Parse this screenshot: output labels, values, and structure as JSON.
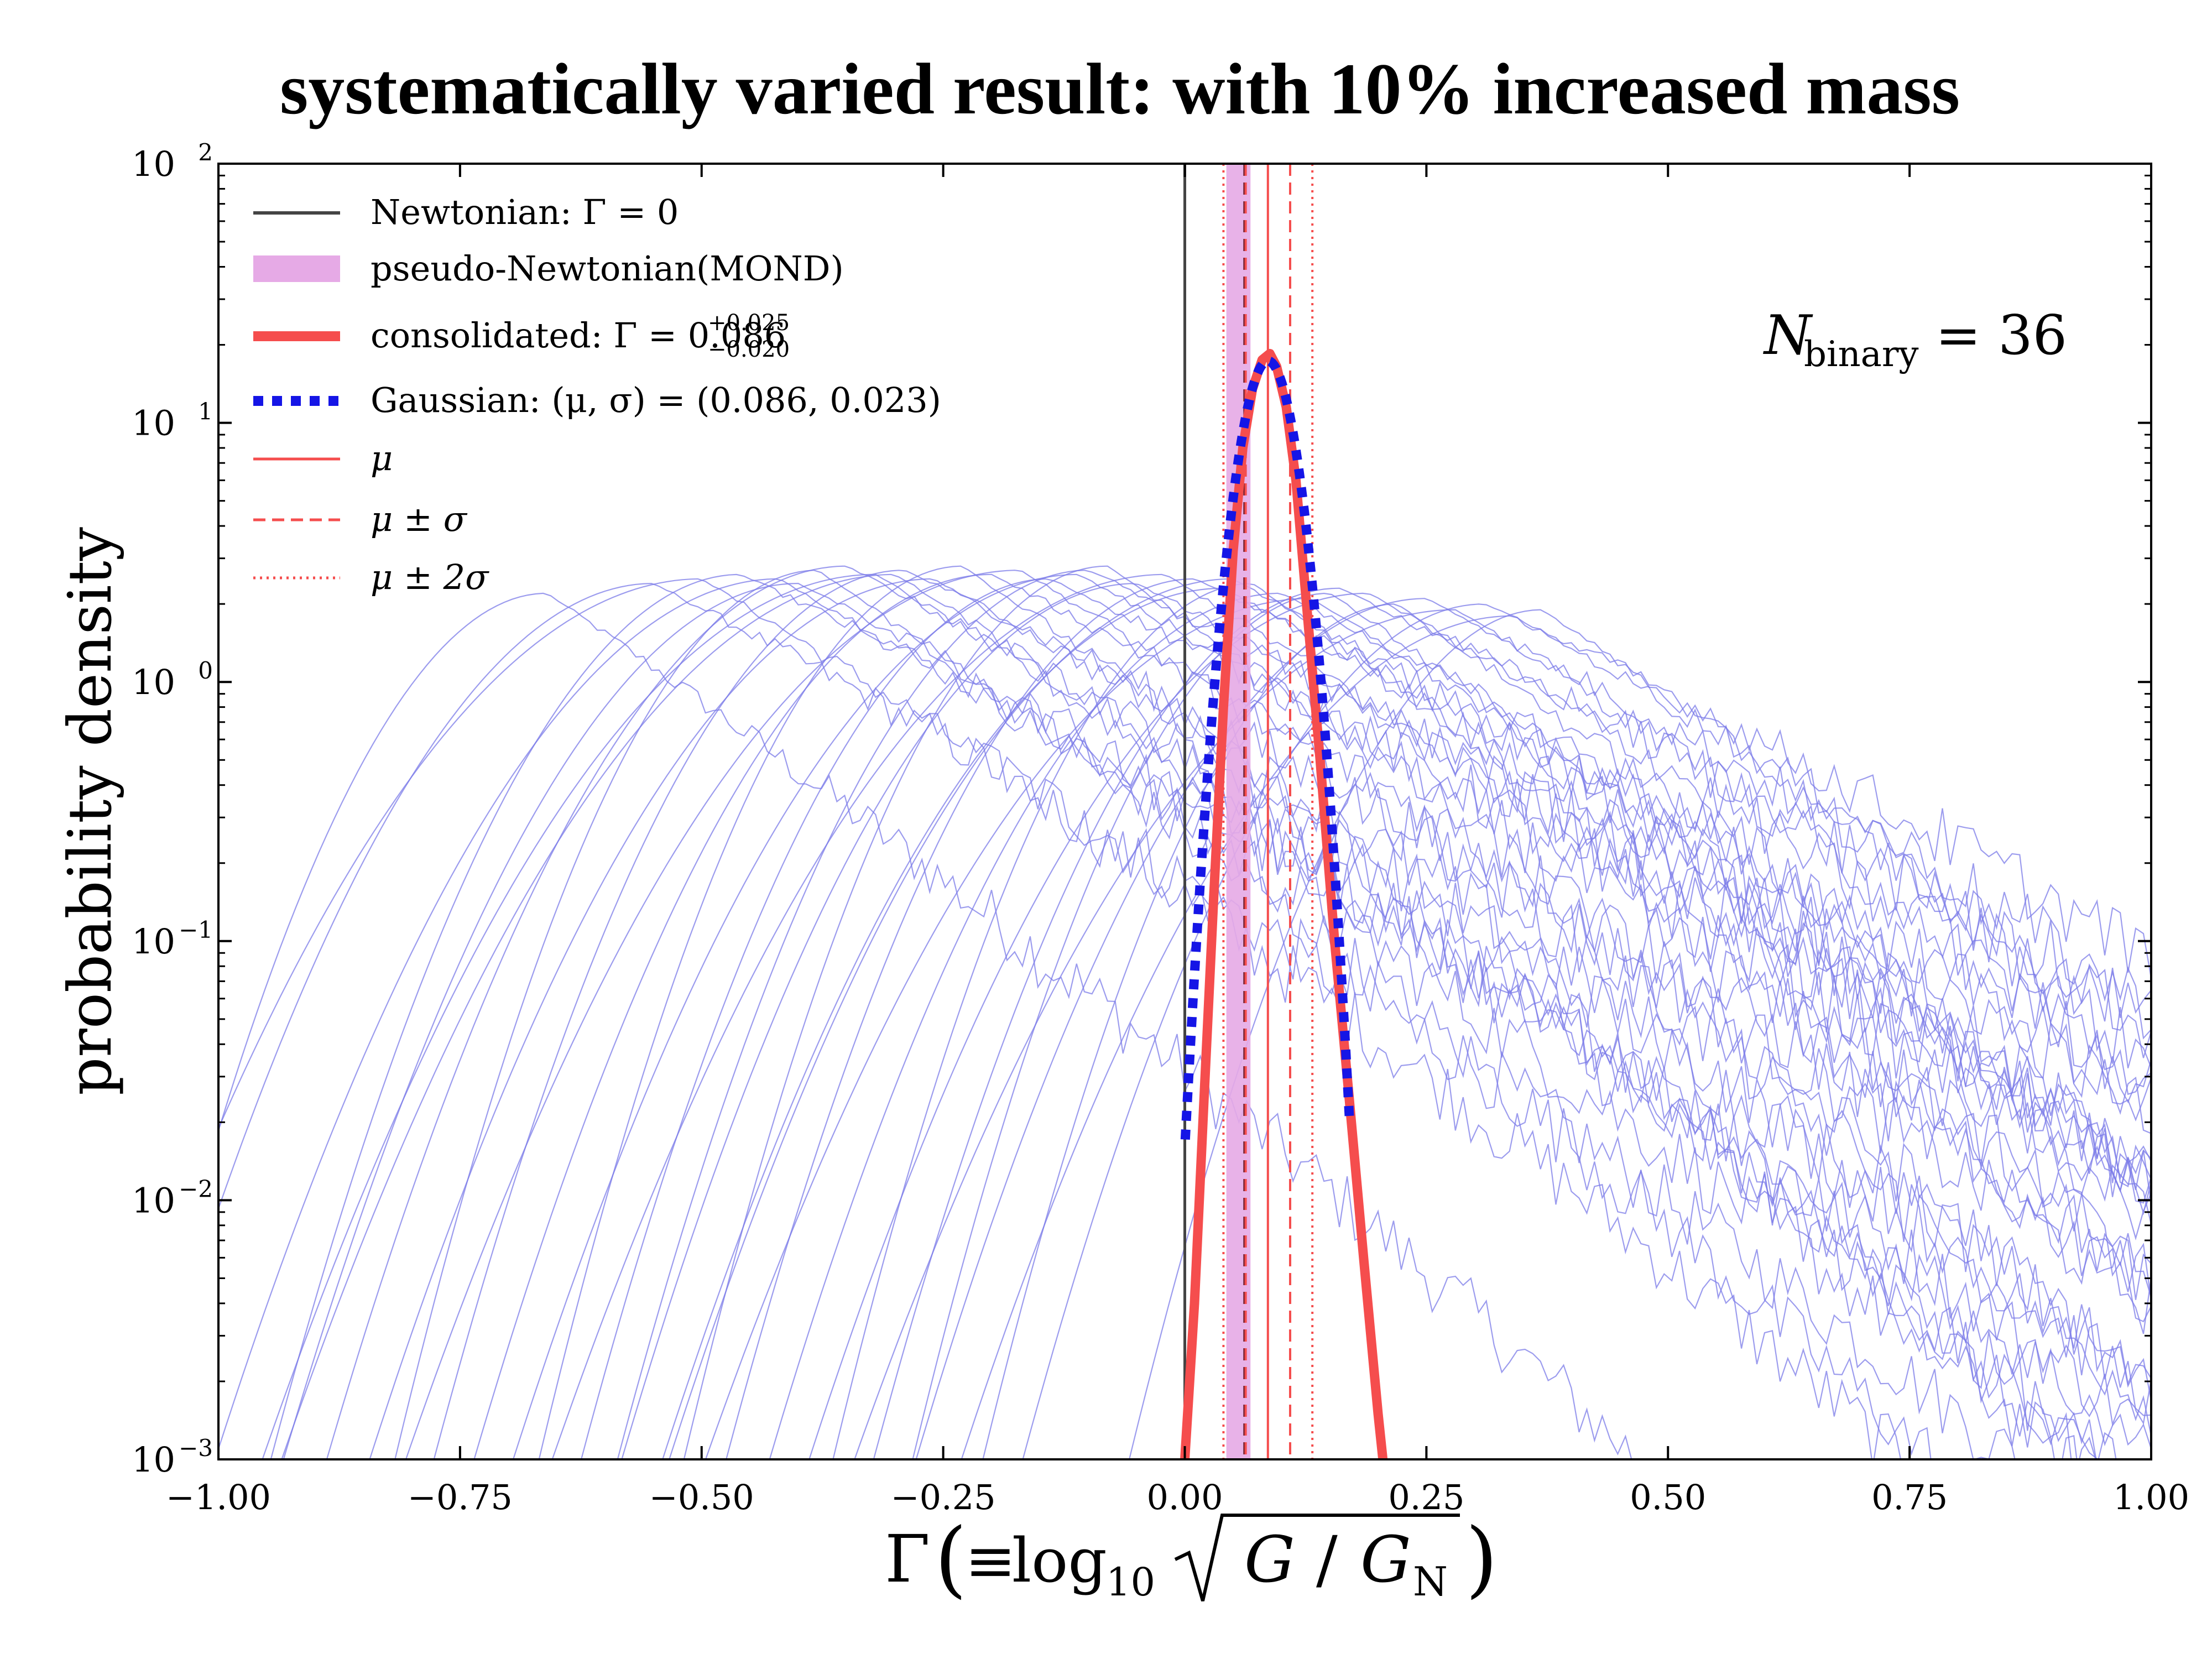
{
  "chart_data": {
    "type": "line",
    "title": "systematically varied result: with 10% increased mass",
    "xlabel": {
      "prefix": "Γ",
      "equiv": "≡",
      "log": "log",
      "sub10": "10",
      "G": "G",
      "slash": "/",
      "GN": "G",
      "GN_sub": "N"
    },
    "ylabel": "probability density",
    "xscale": "linear",
    "yscale": "log",
    "xlim": [
      -1.0,
      1.0
    ],
    "ylim": [
      0.001,
      100
    ],
    "x_ticks": [
      -1.0,
      -0.75,
      -0.5,
      -0.25,
      0.0,
      0.25,
      0.5,
      0.75,
      1.0
    ],
    "x_tick_labels": [
      "−1.00",
      "−0.75",
      "−0.50",
      "−0.25",
      "0.00",
      "0.25",
      "0.50",
      "0.75",
      "1.00"
    ],
    "y_ticks": [
      {
        "value": 0.001,
        "base": "10",
        "exp": "−3"
      },
      {
        "value": 0.01,
        "base": "10",
        "exp": "−2"
      },
      {
        "value": 0.1,
        "base": "10",
        "exp": "−1"
      },
      {
        "value": 1,
        "base": "10",
        "exp": "0"
      },
      {
        "value": 10,
        "base": "10",
        "exp": "1"
      },
      {
        "value": 100,
        "base": "10",
        "exp": "2"
      }
    ],
    "annotation": {
      "main": "N",
      "sub": "binary",
      "eq": " = 36"
    },
    "newtonian_x": 0.0,
    "mond_band": [
      0.043,
      0.068
    ],
    "mond_center": 0.062,
    "consolidated": {
      "mu": 0.086,
      "sigma": 0.023,
      "peak": 18.5,
      "points": [
        {
          "x": 0.0,
          "y": 0.001
        },
        {
          "x": 0.01,
          "y": 0.004
        },
        {
          "x": 0.02,
          "y": 0.025
        },
        {
          "x": 0.03,
          "y": 0.15
        },
        {
          "x": 0.04,
          "y": 0.8
        },
        {
          "x": 0.05,
          "y": 3.2
        },
        {
          "x": 0.06,
          "y": 8.0
        },
        {
          "x": 0.07,
          "y": 13.5
        },
        {
          "x": 0.08,
          "y": 17.5
        },
        {
          "x": 0.088,
          "y": 18.5
        },
        {
          "x": 0.095,
          "y": 16.5
        },
        {
          "x": 0.105,
          "y": 11.5
        },
        {
          "x": 0.115,
          "y": 6.0
        },
        {
          "x": 0.125,
          "y": 2.2
        },
        {
          "x": 0.14,
          "y": 0.5
        },
        {
          "x": 0.155,
          "y": 0.1
        },
        {
          "x": 0.17,
          "y": 0.025
        },
        {
          "x": 0.185,
          "y": 0.006
        },
        {
          "x": 0.2,
          "y": 0.0015
        },
        {
          "x": 0.205,
          "y": 0.001
        }
      ]
    },
    "gaussian": {
      "mu": 0.086,
      "sigma": 0.023
    },
    "vlines": {
      "mu": [
        0.086
      ],
      "mu_pm_sigma": [
        0.063,
        0.109
      ],
      "mu_pm_2sigma": [
        0.04,
        0.132
      ]
    },
    "individual_curves": {
      "count": 36,
      "peak_positions": [
        -0.66,
        -0.55,
        -0.5,
        -0.46,
        -0.42,
        -0.38,
        -0.35,
        -0.32,
        -0.29,
        -0.26,
        -0.23,
        -0.2,
        -0.17,
        -0.14,
        -0.11,
        -0.08,
        -0.05,
        -0.02,
        0.01,
        0.04,
        0.07,
        0.1,
        0.13,
        0.16,
        0.19,
        0.22,
        0.25,
        0.28,
        0.31,
        0.34,
        0.37,
        -0.4,
        -0.3,
        -0.1,
        0.05,
        0.15
      ],
      "peak_values": [
        2.2,
        2.4,
        2.5,
        2.6,
        2.5,
        2.7,
        2.8,
        2.6,
        2.7,
        2.5,
        2.8,
        2.6,
        2.7,
        2.5,
        2.6,
        2.8,
        2.4,
        2.6,
        2.5,
        2.3,
        2.4,
        2.2,
        2.1,
        2.3,
        2.2,
        2.0,
        2.1,
        1.9,
        2.0,
        1.8,
        1.9,
        2.4,
        2.6,
        2.7,
        2.5,
        2.2
      ]
    },
    "legend": {
      "position": "top-left",
      "entries": [
        {
          "key": "newtonian",
          "label": "Newtonian: Γ = 0"
        },
        {
          "key": "mond",
          "label": "pseudo-Newtonian(MOND)"
        },
        {
          "key": "consolidated",
          "label": "consolidated: Γ = 0.086",
          "sup": "+0.025",
          "sub": "−0.020"
        },
        {
          "key": "gaussian",
          "label": "Gaussian: (μ, σ) = (0.086, 0.023)"
        },
        {
          "key": "mu",
          "label": "μ"
        },
        {
          "key": "mu_sigma",
          "label": "μ ± σ"
        },
        {
          "key": "mu_2sigma",
          "label": "μ ± 2σ"
        }
      ]
    },
    "colors": {
      "consolidated": "#f54d4d",
      "gaussian": "#1515e6",
      "individual": "#7b7be8",
      "newtonian": "#444444",
      "mond": "#e6aae6",
      "mond_dash": "#6a1a2a",
      "axis": "#000000"
    }
  }
}
